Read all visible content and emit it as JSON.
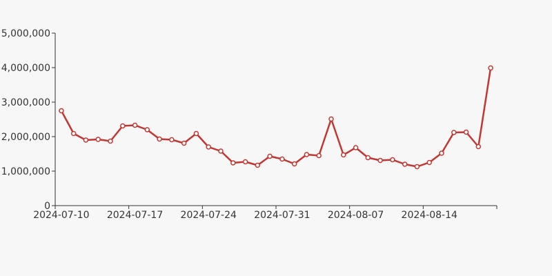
{
  "chart_data": {
    "type": "line",
    "title": "",
    "xlabel": "",
    "ylabel": "",
    "x": [
      "2024-07-10",
      "2024-07-11",
      "2024-07-12",
      "2024-07-13",
      "2024-07-15",
      "2024-07-16",
      "2024-07-17",
      "2024-07-18",
      "2024-07-19",
      "2024-07-20",
      "2024-07-22",
      "2024-07-23",
      "2024-07-24",
      "2024-07-25",
      "2024-07-26",
      "2024-07-27",
      "2024-07-29",
      "2024-07-30",
      "2024-07-31",
      "2024-08-01",
      "2024-08-02",
      "2024-08-03",
      "2024-08-05",
      "2024-08-06",
      "2024-08-07",
      "2024-08-08",
      "2024-08-09",
      "2024-08-10",
      "2024-08-12",
      "2024-08-13",
      "2024-08-14",
      "2024-08-15",
      "2024-08-16",
      "2024-08-17",
      "2024-08-19",
      "2024-08-20"
    ],
    "values": [
      2750000,
      2090000,
      1900000,
      1920000,
      1870000,
      2310000,
      2330000,
      2200000,
      1930000,
      1910000,
      1810000,
      2090000,
      1700000,
      1580000,
      1240000,
      1270000,
      1170000,
      1430000,
      1350000,
      1210000,
      1480000,
      1450000,
      2510000,
      1470000,
      1680000,
      1390000,
      1310000,
      1330000,
      1200000,
      1130000,
      1250000,
      1520000,
      2120000,
      2130000,
      1710000,
      3990000
    ],
    "x_labeled_indices": [
      0,
      6,
      12,
      18,
      24,
      30
    ],
    "x_tick_every": 6,
    "y_ticks": [
      0,
      1000000,
      2000000,
      3000000,
      4000000,
      5000000
    ],
    "y_tick_labels": [
      "0",
      "1,000,000",
      "2,000,000",
      "3,000,000",
      "4,000,000",
      "5,000,000"
    ],
    "ylim": [
      0,
      5000000
    ],
    "grid": false,
    "legend": false,
    "marker_style": "empty-circle",
    "colors": {
      "line": "#c23531",
      "marker_fill": "#ffffff",
      "axis": "#333333",
      "text": "#333333",
      "background": "#f7f7f7"
    }
  }
}
